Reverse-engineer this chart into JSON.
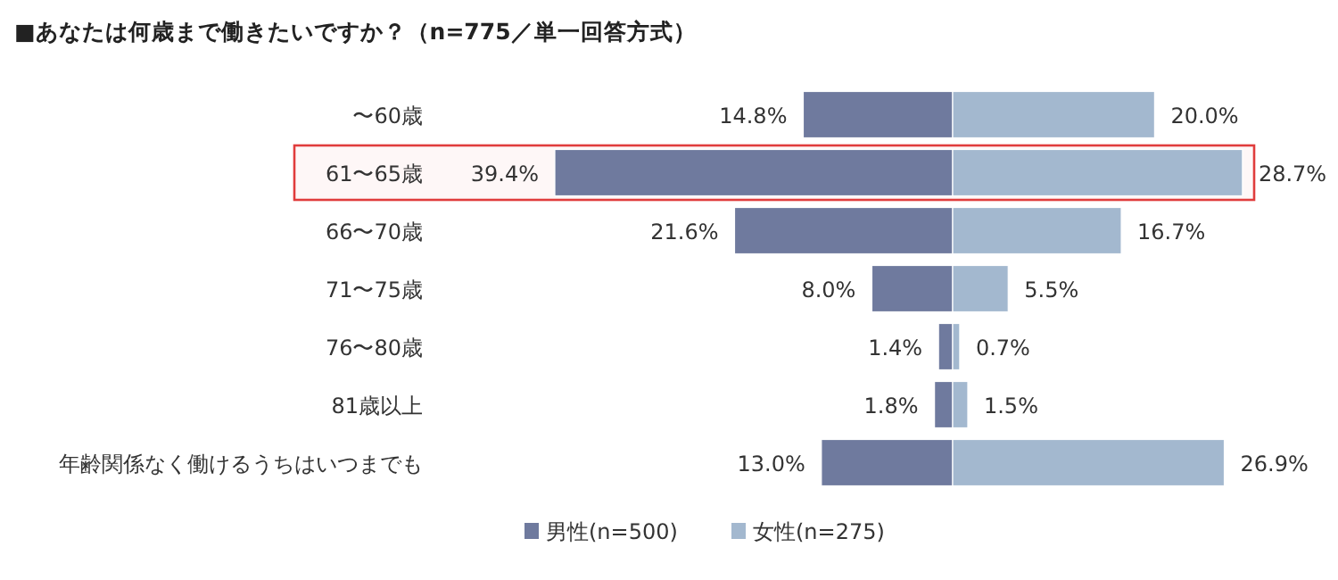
{
  "chart_data": [
    {
      "type": "bar",
      "orientation": "horizontal",
      "title": "■あなたは何歳まで働きたいですか？（n=775／単一回答方式）",
      "categories": [
        "〜60歳",
        "61〜65歳",
        "66〜70歳",
        "71〜75歳",
        "76〜80歳",
        "81歳以上",
        "年齢関係なく働けるうちはいつまでも"
      ],
      "series": [
        {
          "name": "男性(n=500)",
          "color": "#6f7a9e",
          "values": [
            14.8,
            39.4,
            21.6,
            8.0,
            1.4,
            1.8,
            13.0
          ],
          "value_labels": [
            "14.8%",
            "39.4%",
            "21.6%",
            "8.0%",
            "1.4%",
            "1.8%",
            "13.0%"
          ]
        }
      ],
      "bands": [
        {
          "axis": "y",
          "from": "61〜65歳",
          "to": "61〜65歳",
          "color": "#e03c3c"
        }
      ],
      "xlim": [
        39.4,
        0
      ],
      "tick_labels": "y",
      "legend": "bottom"
    },
    {
      "type": "bar",
      "orientation": "horizontal",
      "categories": [
        null,
        null,
        null,
        null,
        null,
        null,
        null
      ],
      "series": [
        {
          "name": "女性(n=275)",
          "color": "#a3b8cf",
          "values": [
            20.0,
            28.7,
            16.7,
            5.5,
            0.7,
            1.5,
            26.9
          ],
          "value_labels": [
            "20.0%",
            "28.7%",
            "16.7%",
            "5.5%",
            "0.7%",
            "1.5%",
            "26.9%"
          ]
        }
      ],
      "xlim": [
        0,
        28.7
      ],
      "tick_labels": false,
      "legend": "bottom"
    }
  ]
}
